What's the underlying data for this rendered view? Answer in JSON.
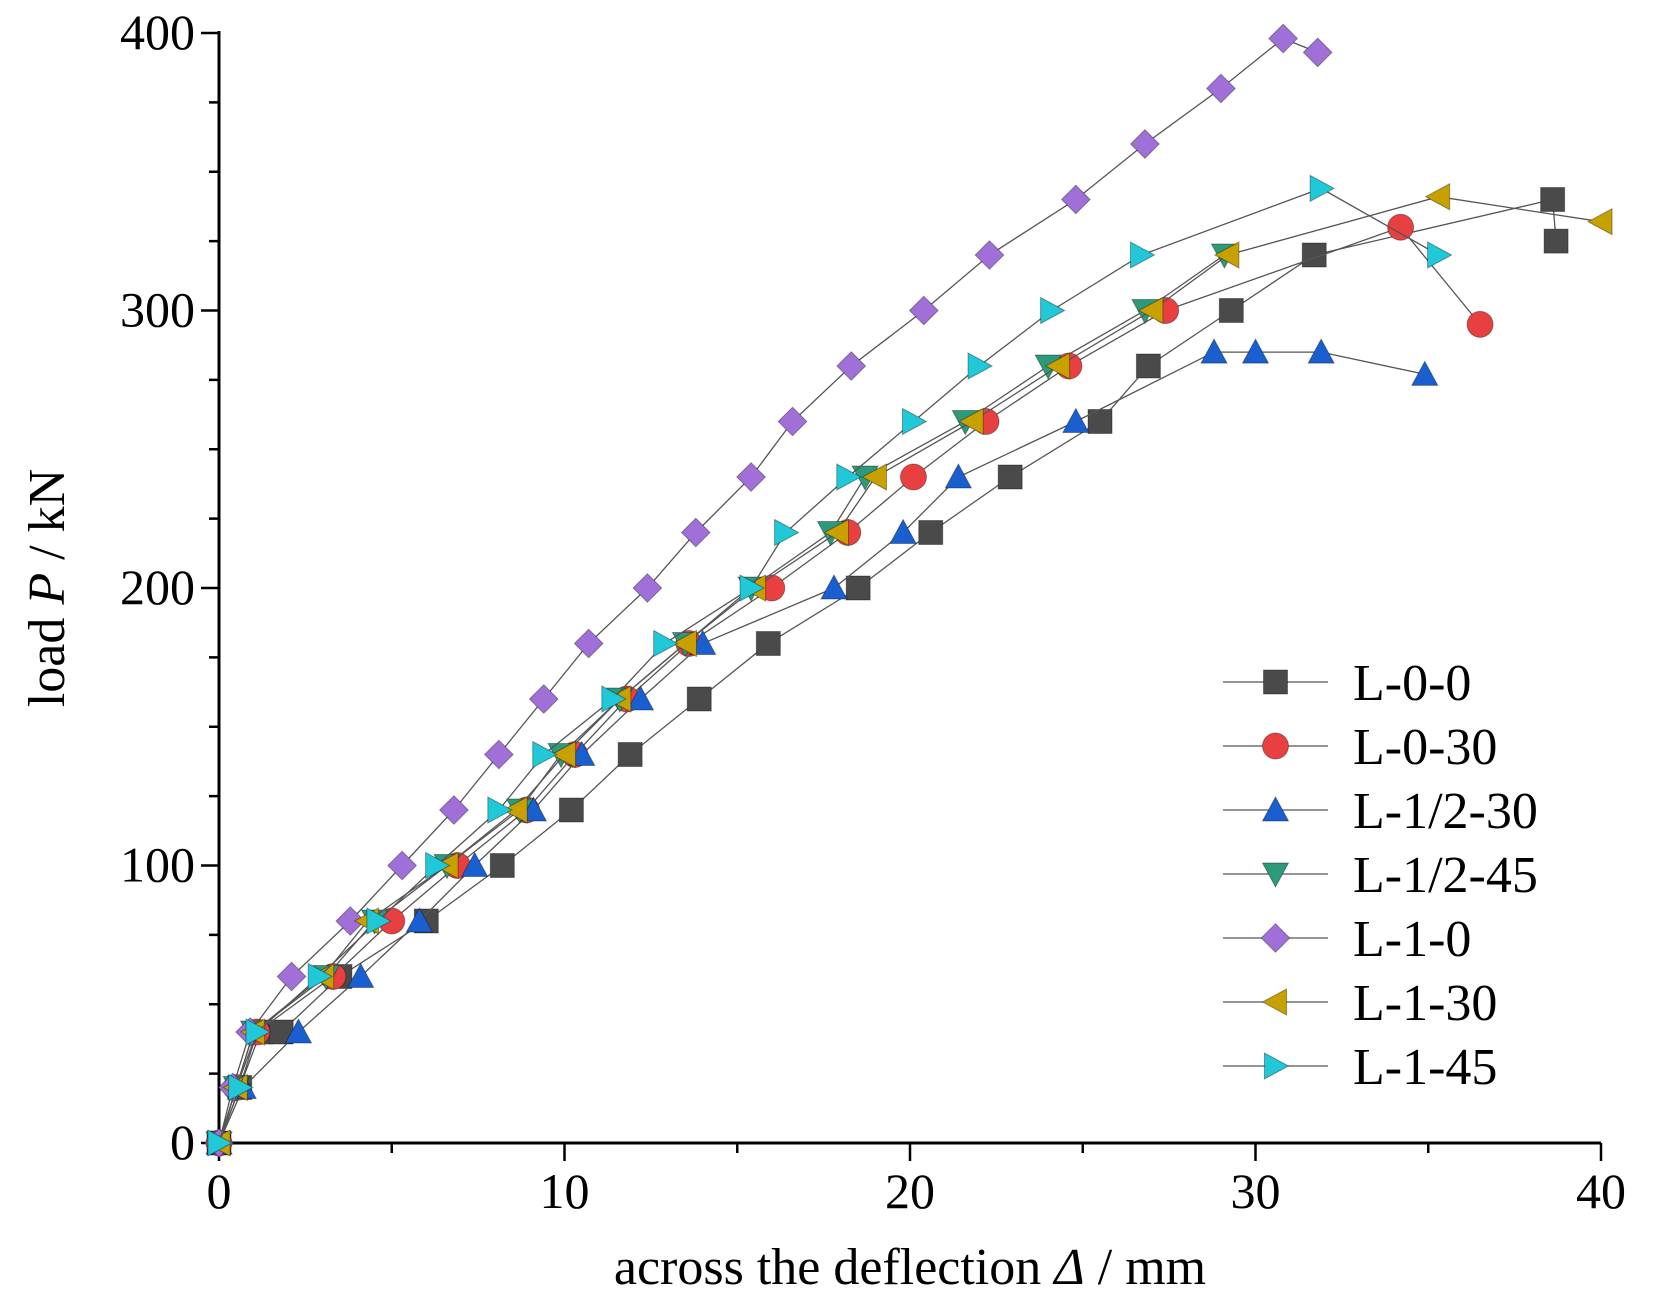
{
  "chart_data": {
    "type": "line",
    "title": "",
    "xlabel": {
      "prefix": "across the deflection ",
      "symbol": "Δ",
      "suffix": " / mm"
    },
    "ylabel": {
      "prefix": "load ",
      "symbol": "P",
      "suffix": " / kN"
    },
    "xlim": [
      0,
      40
    ],
    "ylim": [
      0,
      400
    ],
    "xticks": [
      "0",
      "10",
      "20",
      "30",
      "40"
    ],
    "yticks": [
      "0",
      "100",
      "200",
      "300",
      "400"
    ],
    "grid": false,
    "legend_position": "bottom-right",
    "series": [
      {
        "name": "L-0-0",
        "marker": "square",
        "color": "#4a4a4a",
        "x": [
          0,
          0.6,
          1.2,
          1.8,
          3.5,
          6.0,
          8.2,
          10.2,
          11.9,
          13.9,
          15.9,
          18.5,
          20.6,
          22.9,
          25.5,
          26.9,
          29.3,
          31.7,
          38.6,
          38.7
        ],
        "y": [
          0,
          20,
          40,
          40,
          60,
          80,
          100,
          120,
          140,
          160,
          180,
          200,
          220,
          240,
          260,
          280,
          300,
          320,
          340,
          325
        ]
      },
      {
        "name": "L-0-30",
        "marker": "circle",
        "color": "#e84040",
        "x": [
          0,
          0.5,
          1.1,
          3.3,
          5.0,
          6.9,
          8.9,
          10.3,
          11.8,
          13.6,
          16.0,
          18.2,
          20.1,
          22.2,
          24.6,
          27.4,
          34.2,
          36.5
        ],
        "y": [
          0,
          20,
          40,
          60,
          80,
          100,
          120,
          140,
          160,
          180,
          200,
          220,
          240,
          260,
          280,
          300,
          330,
          295
        ]
      },
      {
        "name": "L-1/2-30",
        "marker": "triangle-up",
        "color": "#1a5fd0",
        "x": [
          0,
          0.7,
          2.3,
          4.1,
          5.8,
          7.4,
          9.1,
          10.5,
          12.2,
          14.0,
          17.8,
          19.8,
          21.4,
          24.8,
          28.8,
          30.0,
          31.9,
          34.9
        ],
        "y": [
          0,
          20,
          40,
          60,
          80,
          100,
          120,
          140,
          160,
          180,
          200,
          220,
          240,
          260,
          285,
          285,
          285,
          277
        ]
      },
      {
        "name": "L-1/2-45",
        "marker": "triangle-down",
        "color": "#2e9a7c",
        "x": [
          0,
          0.5,
          1.0,
          3.1,
          4.5,
          6.6,
          8.7,
          9.9,
          11.6,
          13.5,
          15.4,
          17.7,
          18.7,
          21.6,
          24.0,
          26.8,
          29.1
        ],
        "y": [
          0,
          20,
          40,
          60,
          80,
          100,
          120,
          140,
          160,
          180,
          200,
          220,
          240,
          260,
          280,
          300,
          320
        ]
      },
      {
        "name": "L-1-0",
        "marker": "diamond",
        "color": "#a070d8",
        "x": [
          0,
          0.4,
          0.9,
          2.1,
          3.8,
          5.3,
          6.8,
          8.1,
          9.4,
          10.7,
          12.4,
          13.8,
          15.4,
          16.6,
          18.3,
          20.4,
          22.3,
          24.8,
          26.8,
          29.0,
          30.8,
          31.8
        ],
        "y": [
          0,
          20,
          40,
          60,
          80,
          100,
          120,
          140,
          160,
          180,
          200,
          220,
          240,
          260,
          280,
          300,
          320,
          340,
          360,
          380,
          398,
          393
        ]
      },
      {
        "name": "L-1-30",
        "marker": "triangle-left",
        "color": "#c8a000",
        "x": [
          0,
          0.5,
          1.0,
          3.0,
          4.3,
          6.6,
          8.6,
          10.0,
          11.6,
          13.5,
          15.5,
          17.9,
          19.0,
          21.8,
          24.3,
          27.0,
          29.2,
          35.3,
          40.0
        ],
        "y": [
          0,
          20,
          40,
          60,
          80,
          100,
          120,
          140,
          160,
          180,
          200,
          220,
          240,
          260,
          280,
          300,
          320,
          341,
          332
        ]
      },
      {
        "name": "L-1-45",
        "marker": "triangle-right",
        "color": "#20c8d8",
        "x": [
          0,
          0.6,
          1.1,
          2.9,
          4.6,
          6.3,
          8.1,
          9.4,
          11.4,
          12.9,
          15.4,
          16.4,
          18.2,
          20.1,
          22.0,
          24.1,
          26.7,
          31.9,
          35.3
        ],
        "y": [
          0,
          20,
          40,
          60,
          80,
          100,
          120,
          140,
          160,
          180,
          200,
          220,
          240,
          260,
          280,
          300,
          320,
          344,
          320
        ]
      }
    ]
  }
}
